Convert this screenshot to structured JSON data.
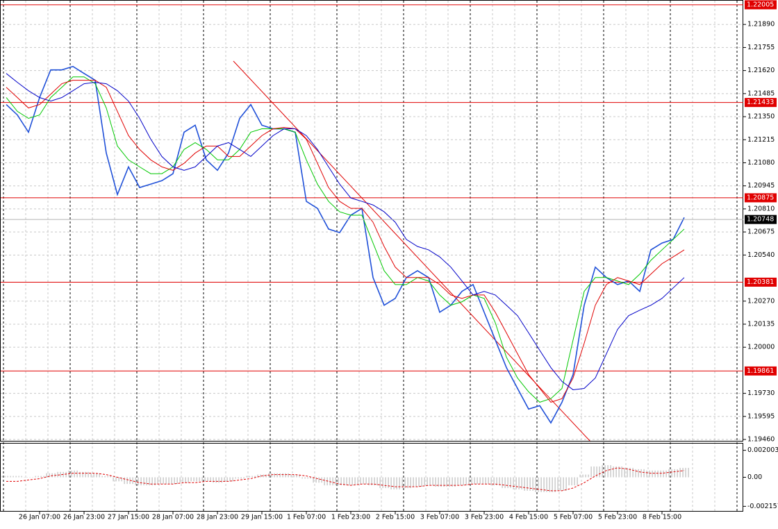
{
  "chart_data": [
    {
      "type": "line",
      "categories": [
        null,
        null,
        null,
        "26 Jan 07:00",
        null,
        null,
        null,
        "26 Jan 23:00",
        null,
        null,
        null,
        "27 Jan 15:00",
        null,
        null,
        null,
        "28 Jan 07:00",
        null,
        null,
        null,
        "28 Jan 23:00",
        null,
        null,
        null,
        "29 Jan 15:00",
        null,
        null,
        null,
        "1 Feb 07:00",
        null,
        null,
        null,
        "1 Feb 23:00",
        null,
        null,
        null,
        "2 Feb 15:00",
        null,
        null,
        null,
        "3 Feb 07:00",
        null,
        null,
        null,
        "3 Feb 23:00",
        null,
        null,
        null,
        "4 Feb 15:00",
        null,
        null,
        null,
        "5 Feb 07:00",
        null,
        null,
        null,
        "5 Feb 23:00",
        null,
        null,
        null,
        "8 Feb 15:00",
        null,
        null
      ],
      "series": [
        {
          "color": "#1e4fd8",
          "values": [
            1.21421,
            1.2136,
            1.21259,
            1.21462,
            1.21624,
            1.21624,
            1.21644,
            1.21603,
            1.21563,
            1.21137,
            1.20894,
            1.21056,
            1.20935,
            1.20955,
            1.20975,
            1.21016,
            1.21259,
            1.213,
            1.21097,
            1.21036,
            1.21137,
            1.2134,
            1.21421,
            1.213,
            1.21279,
            1.21279,
            1.21259,
            1.20854,
            1.20813,
            1.20692,
            1.20671,
            1.20773,
            1.20813,
            1.20408,
            1.20246,
            1.20286,
            1.20408,
            1.20448,
            1.20408,
            1.20205,
            1.20246,
            1.20327,
            1.20367,
            1.20205,
            1.20043,
            1.19881,
            1.19759,
            1.19638,
            1.19658,
            1.19557,
            1.19678,
            1.1984,
            1.20246,
            1.20469,
            1.20408,
            1.20367,
            1.20388,
            1.20327,
            1.2057,
            1.2061,
            1.20631,
            1.2076
          ]
        },
        {
          "color": "#00c800",
          "values": [
            1.21462,
            1.21381,
            1.2134,
            1.2136,
            1.21462,
            1.21522,
            1.21583,
            1.21583,
            1.21543,
            1.21401,
            1.21178,
            1.21097,
            1.21056,
            1.21016,
            1.21016,
            1.21056,
            1.21158,
            1.21198,
            1.21158,
            1.21097,
            1.21097,
            1.21158,
            1.21259,
            1.21279,
            1.21279,
            1.21279,
            1.21259,
            1.21097,
            1.20955,
            1.20854,
            1.20793,
            1.20773,
            1.20773,
            1.2061,
            1.20448,
            1.20367,
            1.20367,
            1.20408,
            1.20388,
            1.20306,
            1.20246,
            1.20266,
            1.20306,
            1.20286,
            1.20144,
            1.19942,
            1.1982,
            1.19739,
            1.19678,
            1.19699,
            1.19759,
            1.20043,
            1.20327,
            1.20408,
            1.20408,
            1.20388,
            1.20367,
            1.20428,
            1.20509,
            1.2057,
            1.20631,
            1.20692
          ]
        },
        {
          "color": "#e00000",
          "values": [
            1.21522,
            1.21462,
            1.21401,
            1.21421,
            1.21482,
            1.21543,
            1.21563,
            1.21563,
            1.21563,
            1.21522,
            1.21381,
            1.21239,
            1.21158,
            1.21097,
            1.21056,
            1.21036,
            1.21077,
            1.21137,
            1.21178,
            1.21178,
            1.21117,
            1.21117,
            1.21178,
            1.21239,
            1.21279,
            1.21287,
            1.21279,
            1.21218,
            1.21077,
            1.20935,
            1.20854,
            1.20813,
            1.20813,
            1.20732,
            1.2059,
            1.20469,
            1.20408,
            1.20408,
            1.20408,
            1.20367,
            1.20306,
            1.20286,
            1.20306,
            1.20306,
            1.20205,
            1.20084,
            1.19962,
            1.1984,
            1.19759,
            1.19678,
            1.19699,
            1.1982,
            1.20023,
            1.20246,
            1.20367,
            1.20408,
            1.20388,
            1.20367,
            1.20428,
            1.20489,
            1.20529,
            1.2057
          ]
        },
        {
          "color": "#0000c8",
          "values": [
            1.21603,
            1.21551,
            1.21502,
            1.21462,
            1.21441,
            1.21462,
            1.21502,
            1.21543,
            1.21551,
            1.21543,
            1.21502,
            1.21441,
            1.2134,
            1.21218,
            1.21117,
            1.21056,
            1.21036,
            1.21056,
            1.21117,
            1.21178,
            1.21198,
            1.21158,
            1.21117,
            1.21178,
            1.21239,
            1.21279,
            1.21279,
            1.21239,
            1.21158,
            1.21056,
            1.20955,
            1.20874,
            1.20854,
            1.20833,
            1.20793,
            1.20732,
            1.20631,
            1.2059,
            1.2057,
            1.20529,
            1.20469,
            1.20388,
            1.20306,
            1.20327,
            1.20306,
            1.20246,
            1.20185,
            1.20084,
            1.19982,
            1.19881,
            1.198,
            1.19751,
            1.19759,
            1.1982,
            1.19962,
            1.20104,
            1.20185,
            1.20217,
            1.20246,
            1.20286,
            1.20347,
            1.20408
          ]
        }
      ],
      "ylim": [
        1.19452,
        1.22029
      ],
      "yticks": [
        {
          "value": 1.2189,
          "label": "1.21890"
        },
        1.21755,
        {
          "value": 1.2162,
          "label": "1.21620"
        },
        1.21485,
        {
          "value": 1.2135,
          "label": "1.21350"
        },
        1.21215,
        {
          "value": 1.2108,
          "label": "1.21080"
        },
        1.20945,
        {
          "value": 1.2081,
          "label": "1.20810"
        },
        1.20675,
        {
          "value": 1.2054,
          "label": "1.20540"
        },
        {
          "value": 1.2027,
          "label": "1.20270"
        },
        1.20135,
        {
          "value": 1.2,
          "label": "1.20000"
        },
        {
          "value": 1.1973,
          "label": "1.19730"
        },
        1.19595,
        {
          "value": 1.1946,
          "label": "1.19460"
        }
      ],
      "levels": [
        1.22005,
        1.21433,
        1.20875,
        1.20381,
        1.19861
      ],
      "level_color": "#e00000",
      "current_price": 1.20748,
      "grid": true
    },
    {
      "type": "bar",
      "color": "#bcbcbc",
      "values": [
        0.0001,
        0.0001,
        0,
        0.0001,
        0.0003,
        0.0004,
        0.0005,
        0.0004,
        0.0003,
        0.0001,
        -0.0003,
        -0.0005,
        -0.0006,
        -0.0006,
        -0.0005,
        -0.0005,
        -0.0004,
        -0.0003,
        -0.0003,
        -0.0004,
        -0.0003,
        -0.0001,
        0.0001,
        0.0002,
        0.0003,
        0.0003,
        0.0002,
        -0.0001,
        -0.0004,
        -0.0006,
        -0.0006,
        -0.0006,
        -0.0005,
        -0.0006,
        -0.0008,
        -0.0009,
        -0.0008,
        -0.0007,
        -0.0006,
        -0.0007,
        -0.0007,
        -0.0006,
        -0.0005,
        -0.0005,
        -0.0006,
        -0.0008,
        -0.0009,
        -0.001,
        -0.0011,
        -0.0011,
        -0.001,
        -0.0006,
        0.0002,
        0.0008,
        0.0009,
        0.0008,
        0.0007,
        0.0006,
        0.0005,
        0.0005,
        0.0006,
        0.0007
      ],
      "signal": {
        "color": "#e00000",
        "values": [
          -0.0003,
          -0.0003,
          -0.0002,
          -0.0001,
          0.0001,
          0.0002,
          0.0003,
          0.0003,
          0.0003,
          0.0002,
          0,
          -0.0002,
          -0.0004,
          -0.0005,
          -0.0005,
          -0.0005,
          -0.0004,
          -0.0004,
          -0.0003,
          -0.0003,
          -0.0003,
          -0.0002,
          -0.0001,
          0.0001,
          0.0002,
          0.0002,
          0.0002,
          0.0001,
          -0.0001,
          -0.0003,
          -0.0005,
          -0.0006,
          -0.0005,
          -0.0005,
          -0.0006,
          -0.0007,
          -0.0007,
          -0.0007,
          -0.0006,
          -0.0006,
          -0.0006,
          -0.0006,
          -0.0005,
          -0.0005,
          -0.0005,
          -0.0006,
          -0.0007,
          -0.0008,
          -0.0009,
          -0.001,
          -0.001,
          -0.0008,
          -0.0004,
          0.0001,
          0.0005,
          0.0007,
          0.0006,
          0.0004,
          0.0003,
          0.0003,
          0.0004,
          0.0005
        ]
      },
      "ylim": [
        -0.0025,
        0.0025
      ],
      "yticks": [
        0.002003,
        {
          "value": 0,
          "label": "0.00"
        },
        -0.002157
      ]
    }
  ]
}
